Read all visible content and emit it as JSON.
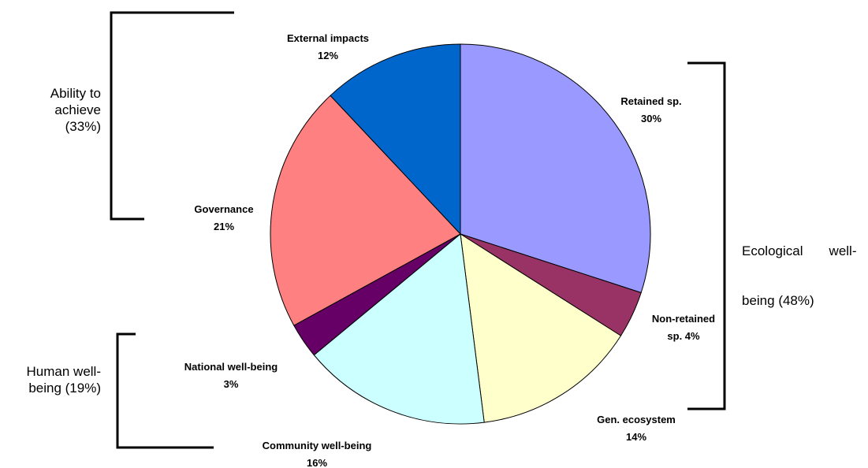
{
  "chart_data": {
    "type": "pie",
    "slices": [
      {
        "name": "Retained sp.",
        "label_line1": "Retained sp.",
        "label_line2": "30%",
        "value": 30,
        "color": "#9999FF"
      },
      {
        "name": "Non-retained sp.",
        "label_line1": "Non-retained",
        "label_line2": "sp. 4%",
        "value": 4,
        "color": "#993366"
      },
      {
        "name": "Gen. ecosystem",
        "label_line1": "Gen. ecosystem",
        "label_line2": "14%",
        "value": 14,
        "color": "#FFFFCC"
      },
      {
        "name": "Community well-being",
        "label_line1": "Community well-being",
        "label_line2": "16%",
        "value": 16,
        "color": "#CCFFFF"
      },
      {
        "name": "National well-being",
        "label_line1": "National well-being",
        "label_line2": "3%",
        "value": 3,
        "color": "#660066"
      },
      {
        "name": "Governance",
        "label_line1": "Governance",
        "label_line2": "21%",
        "value": 21,
        "color": "#FF8080"
      },
      {
        "name": "External impacts",
        "label_line1": "External impacts",
        "label_line2": "12%",
        "value": 12,
        "color": "#0066CC"
      }
    ],
    "start": "12 o'clock",
    "direction": "clockwise",
    "groups": [
      {
        "lines": [
          "Ability to",
          "achieve",
          "(33%)"
        ],
        "members": [
          "External impacts",
          "Governance"
        ],
        "value": 33
      },
      {
        "lines": [
          "Ecological       well-",
          "being (48%)"
        ],
        "members": [
          "Retained sp.",
          "Non-retained sp.",
          "Gen. ecosystem"
        ],
        "value": 48
      },
      {
        "lines": [
          "Human well-",
          "being (19%)"
        ],
        "members": [
          "Community well-being",
          "National well-being"
        ],
        "value": 19
      }
    ]
  }
}
